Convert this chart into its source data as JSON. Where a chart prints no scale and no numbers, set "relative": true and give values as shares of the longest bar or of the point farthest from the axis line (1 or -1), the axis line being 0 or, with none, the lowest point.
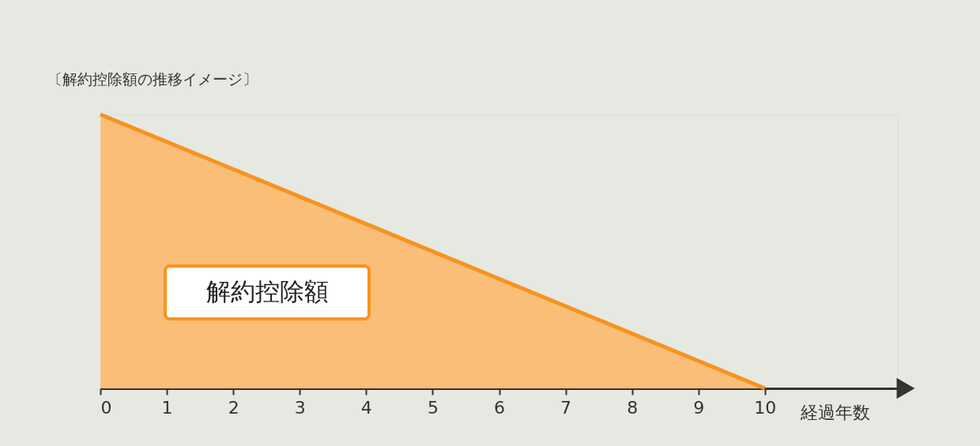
{
  "chart_data": {
    "type": "area",
    "title": "〔解約控除額の推移イメージ〕",
    "xlabel": "経過年数",
    "relative": true,
    "x": [
      0,
      10
    ],
    "series": [
      {
        "color": "#f7931e",
        "values": [
          1,
          0
        ]
      }
    ],
    "xlim": [
      0,
      12
    ],
    "xticks": [
      0,
      1,
      2,
      3,
      4,
      5,
      6,
      7,
      8,
      9,
      10
    ],
    "annotations": [
      "解約控除額"
    ]
  }
}
